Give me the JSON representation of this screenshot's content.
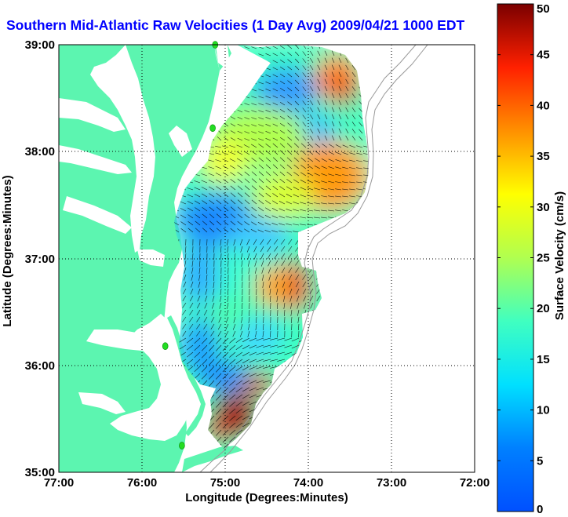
{
  "title": "Southern Mid-Atlantic Raw Velocities (1 Day Avg) 2009/04/21 1000 EDT",
  "map": {
    "xlabel": "Longitude (Degrees:Minutes)",
    "ylabel": "Latitude (Degrees:Minutes)",
    "x_ticks": [
      "77:00",
      "76:00",
      "75:00",
      "74:00",
      "73:00",
      "72:00"
    ],
    "y_ticks": [
      "39:00",
      "38:00",
      "37:00",
      "36:00",
      "35:00"
    ],
    "lon_range": [
      -77,
      -72
    ],
    "lat_range": [
      35,
      39
    ],
    "grid": "dotted",
    "land_color": "#5cf5b0",
    "coast_color": "#ffffff",
    "isobath_color": "#999999",
    "station_color": "#22dd22"
  },
  "colorbar": {
    "label": "Surface Velocity (cm/s)",
    "ticks": [
      "50",
      "45",
      "40",
      "35",
      "30",
      "25",
      "20",
      "15",
      "10",
      "5",
      "0"
    ],
    "range": [
      0,
      50
    ],
    "colormap": "jet"
  },
  "chart_data": {
    "type": "heatmap",
    "title": "Southern Mid-Atlantic Raw Velocities (1 Day Avg) 2009/04/21 1000 EDT",
    "xlabel": "Longitude (Degrees:Minutes)",
    "ylabel": "Latitude (Degrees:Minutes)",
    "xlim": [
      -77,
      -72
    ],
    "ylim": [
      35,
      39
    ],
    "value_label": "Surface Velocity (cm/s)",
    "value_range": [
      0,
      50
    ],
    "stations": [
      {
        "lon": -75.12,
        "lat": 39.0
      },
      {
        "lon": -75.15,
        "lat": 38.22
      },
      {
        "lon": -75.72,
        "lat": 36.18
      },
      {
        "lon": -75.52,
        "lat": 35.25
      }
    ],
    "regions": [
      {
        "area": "NE corner near 73:40W 38:40N",
        "value": 40
      },
      {
        "area": "off Delaware 74:30W 38:00N",
        "value": 30
      },
      {
        "area": "offshore 74:00W 37:40N",
        "value": 36
      },
      {
        "area": "central 74:40W 38:20N",
        "value": 20
      },
      {
        "area": "near shore 75:30W 37:20N",
        "value": 6
      },
      {
        "area": "central 74:50W 37:00N",
        "value": 14
      },
      {
        "area": "hot spot 74:15W 36:45N",
        "value": 42
      },
      {
        "area": "south 74:50W 36:00N",
        "value": 10
      },
      {
        "area": "Hatteras 74:50W 35:35N",
        "value": 46
      }
    ]
  }
}
